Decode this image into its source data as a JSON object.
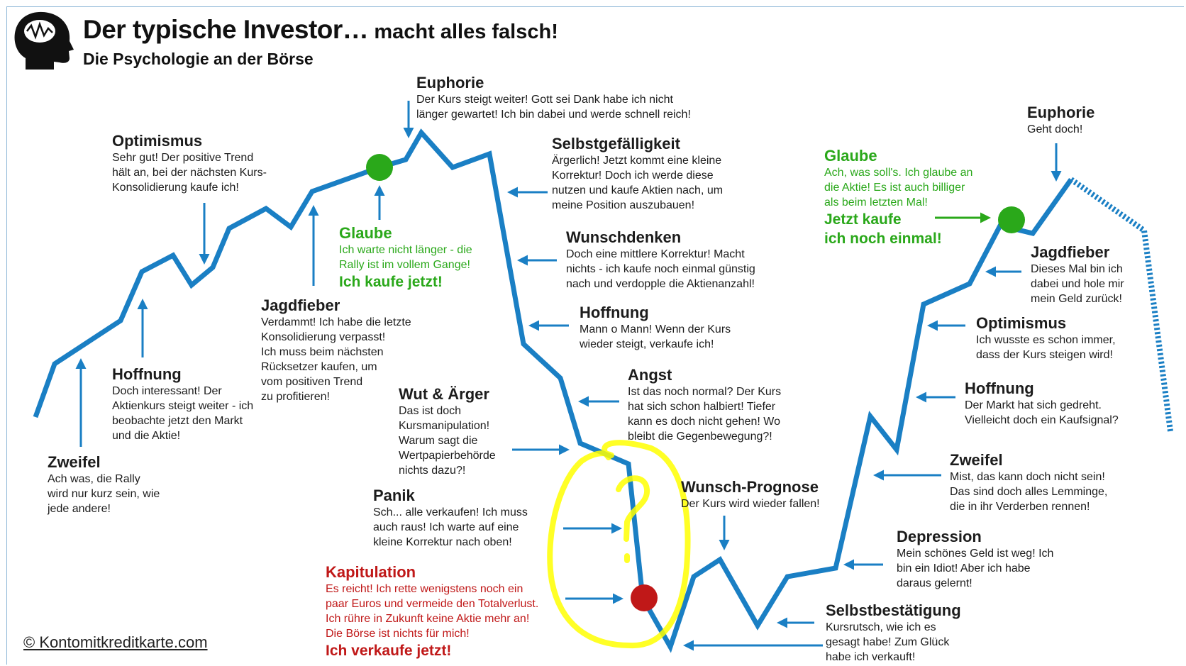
{
  "header": {
    "title_main": "Der typische Investor…",
    "title_rest": " macht alles falsch!",
    "subtitle": "Die Psychologie an der Börse"
  },
  "copyright": "© Kontomitkreditkarte.com",
  "colors": {
    "curve": "#1a7fc4",
    "green": "#2aa81a",
    "red": "#c01818",
    "highlight": "#ffff00",
    "text": "#1c1c1c"
  },
  "icons": {
    "logo": "head-brain-icon"
  },
  "phases": {
    "zweifel1": {
      "heading": "Zweifel",
      "text": "Ach was, die Rally\nwird nur kurz sein, wie\njede andere!"
    },
    "hoffnung1": {
      "heading": "Hoffnung",
      "text": "Doch interessant! Der\nAktienkurs steigt weiter - ich\nbeobachte jetzt den Markt\nund die Aktie!"
    },
    "optimismus1": {
      "heading": "Optimismus",
      "text": "Sehr gut! Der positive Trend\nhält an, bei der nächsten Kurs-\nKonsolidierung kaufe ich!"
    },
    "jagdfieber1": {
      "heading": "Jagdfieber",
      "text": "Verdammt! Ich habe die letzte\nKonsolidierung verpasst!\nIch muss beim nächsten\nRücksetzer kaufen, um\nvom positiven Trend\nzu profitieren!"
    },
    "glaube1": {
      "heading": "Glaube",
      "text": "Ich warte nicht länger - die\nRally ist im vollem Gange!",
      "cta": "Ich kaufe jetzt!"
    },
    "euphorie1": {
      "heading": "Euphorie",
      "text": "Der Kurs steigt weiter! Gott sei Dank habe ich nicht\nlänger gewartet! Ich bin dabei und werde schnell reich!"
    },
    "selbstgefaelligkeit": {
      "heading": "Selbstgefälligkeit",
      "text": "Ärgerlich! Jetzt kommt eine kleine\nKorrektur! Doch ich werde diese\nnutzen und kaufe Aktien nach, um\nmeine Position auszubauen!"
    },
    "wunschdenken": {
      "heading": "Wunschdenken",
      "text": "Doch eine mittlere Korrektur! Macht\nnichts - ich kaufe noch einmal günstig\nnach und verdopple die Aktienanzahl!"
    },
    "hoffnung2": {
      "heading": "Hoffnung",
      "text": "Mann o Mann! Wenn der Kurs\nwieder steigt, verkaufe ich!"
    },
    "angst": {
      "heading": "Angst",
      "text": "Ist das noch normal? Der Kurs\nhat sich schon halbiert! Tiefer\nkann es doch nicht gehen! Wo\nbleibt die Gegenbewegung?!"
    },
    "wut": {
      "heading": "Wut & Ärger",
      "text": "Das ist doch\nKursmanipulation!\nWarum sagt die\nWertpapierbehörde\nnichts dazu?!"
    },
    "panik": {
      "heading": "Panik",
      "text": "Sch... alle verkaufen! Ich muss\nauch raus! Ich warte auf eine\nkleine Korrektur nach oben!"
    },
    "kapitulation": {
      "heading": "Kapitulation",
      "text": "Es reicht! Ich rette wenigstens noch ein\npaar Euros und vermeide den Totalverlust.\nIch rühre in Zukunft keine Aktie mehr an!\nDie Börse ist nichts für mich!",
      "cta": "Ich verkaufe jetzt!"
    },
    "wunschprognose": {
      "heading": "Wunsch-Prognose",
      "text": "Der Kurs wird wieder fallen!"
    },
    "selbstbestaetigung": {
      "heading": "Selbstbestätigung",
      "text": "Kursrutsch, wie ich es\ngesagt habe! Zum Glück\nhabe ich verkauft!"
    },
    "depression": {
      "heading": "Depression",
      "text": "Mein schönes Geld ist weg! Ich\nbin ein Idiot! Aber ich habe\ndaraus gelernt!"
    },
    "zweifel2": {
      "heading": "Zweifel",
      "text": "Mist, das kann doch nicht sein!\nDas sind doch alles Lemminge,\ndie in ihr Verderben rennen!"
    },
    "hoffnung3": {
      "heading": "Hoffnung",
      "text": "Der Markt hat sich gedreht.\nVielleicht doch ein Kaufsignal?"
    },
    "optimismus2": {
      "heading": "Optimismus",
      "text": "Ich wusste es schon immer,\ndass der Kurs steigen wird!"
    },
    "jagdfieber2": {
      "heading": "Jagdfieber",
      "text": "Dieses Mal bin ich\ndabei und hole mir\nmein Geld zurück!"
    },
    "glaube2": {
      "heading": "Glaube",
      "text": "Ach, was soll's. Ich glaube an\ndie Aktie! Es ist auch billiger\nals beim letzten Mal!",
      "cta": "Jetzt kaufe\nich noch einmal!"
    },
    "euphorie2": {
      "heading": "Euphorie",
      "text": "Geht doch!"
    }
  }
}
